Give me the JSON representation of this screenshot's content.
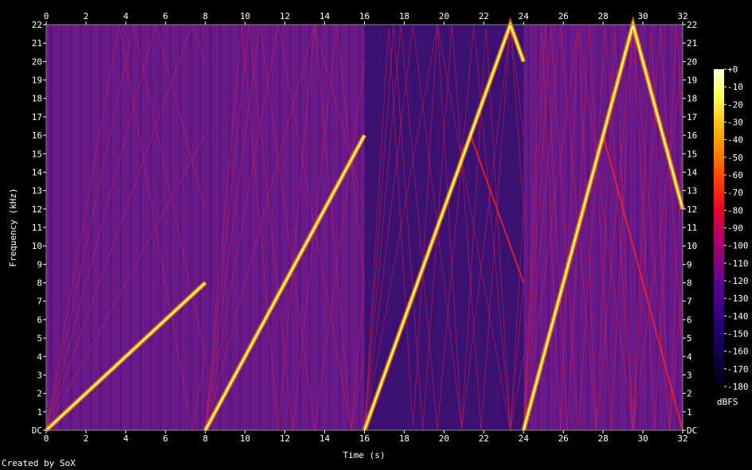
{
  "chart_data": {
    "type": "heatmap",
    "title": "",
    "xlabel": "Time (s)",
    "ylabel": "Frequency (kHz)",
    "xlim": [
      0,
      32
    ],
    "ylim": [
      0,
      22
    ],
    "x_ticks": [
      "0",
      "2",
      "4",
      "6",
      "8",
      "10",
      "12",
      "14",
      "16",
      "18",
      "20",
      "22",
      "24",
      "26",
      "28",
      "30",
      "32"
    ],
    "y_ticks": [
      "DC",
      "1",
      "2",
      "3",
      "4",
      "5",
      "6",
      "7",
      "8",
      "9",
      "10",
      "11",
      "12",
      "13",
      "14",
      "15",
      "16",
      "17",
      "18",
      "19",
      "20",
      "21",
      "22"
    ],
    "colorbar": {
      "label": "dBFS",
      "range": [
        -180,
        0
      ],
      "ticks": [
        "+0",
        "-10",
        "-20",
        "-30",
        "-40",
        "-50",
        "-60",
        "-70",
        "-80",
        "-90",
        "-100",
        "-110",
        "-120",
        "-130",
        "-140",
        "-150",
        "-160",
        "-170",
        "-180"
      ],
      "colors": [
        "#ffffe0",
        "#ffff60",
        "#ffd000",
        "#ff8000",
        "#ff2000",
        "#d00040",
        "#a00070",
        "#6a0090",
        "#300070",
        "#000020"
      ]
    },
    "segments": [
      {
        "t_start": 0,
        "t_end": 8,
        "f_start_khz": 0,
        "f_end_khz": 8,
        "fold_khz": 16
      },
      {
        "t_start": 8,
        "t_end": 16,
        "f_start_khz": 0,
        "f_end_khz": 16,
        "fold_khz": 22
      },
      {
        "t_start": 16,
        "t_end": 24,
        "f_start_khz": 0,
        "f_end_khz": 24,
        "fold_khz": 22
      },
      {
        "t_start": 24,
        "t_end": 32,
        "f_start_khz": 0,
        "f_end_khz": 32,
        "fold_khz": 22
      }
    ],
    "background_colors": [
      "#6a1a88",
      "#6a1a88",
      "#3a1070",
      "#6a1a88"
    ]
  },
  "credit": "Created by SoX"
}
